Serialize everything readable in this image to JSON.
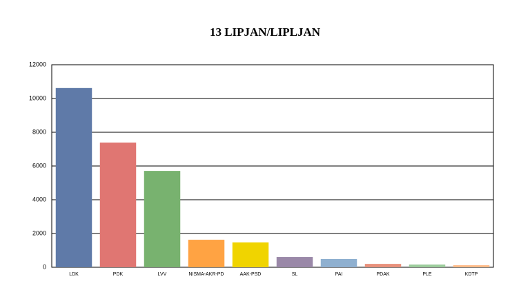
{
  "chart_data": {
    "type": "bar",
    "title": "13 LIPJAN/LIPLJAN",
    "categories": [
      "LDK",
      "PDK",
      "LVV",
      "NISMA-AKR-PD",
      "AAK-PSD",
      "SL",
      "PAI",
      "PDAK",
      "PLE",
      "KDTP"
    ],
    "values": [
      10620,
      7390,
      5710,
      1630,
      1470,
      610,
      490,
      200,
      160,
      120
    ],
    "colors": [
      "#5f7aa8",
      "#e07672",
      "#78b26f",
      "#ffa343",
      "#f0d400",
      "#9a88a8",
      "#8fb0d0",
      "#e8917c",
      "#9ccc9c",
      "#ffbb88"
    ],
    "ylim": [
      0,
      12000
    ],
    "yticks": [
      0,
      2000,
      4000,
      6000,
      8000,
      10000,
      12000
    ],
    "grid": true
  }
}
